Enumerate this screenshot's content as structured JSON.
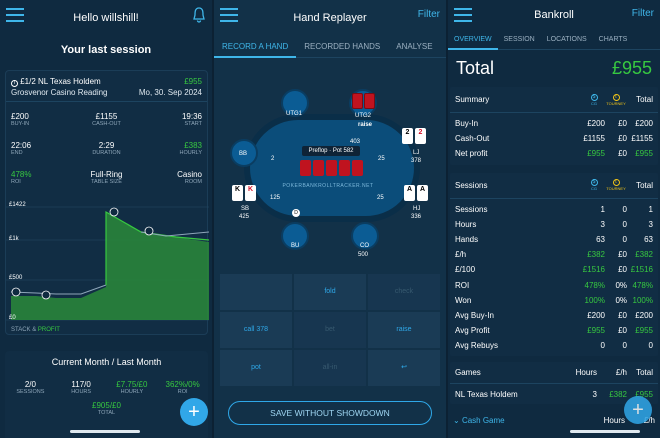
{
  "p1": {
    "title": "Hello willshill!",
    "section_title": "Your last session",
    "game": "£1/2 NL Texas Holdem",
    "profit": "£955",
    "venue": "Grosvenor Casino Reading",
    "date": "Mo, 30. Sep 2024",
    "stats": [
      {
        "v": "£200",
        "l": "BUY-IN"
      },
      {
        "v": "£1155",
        "l": "CASH-OUT"
      },
      {
        "v": "19:36",
        "l": "START"
      },
      {
        "v": "22:06",
        "l": "END"
      },
      {
        "v": "2:29",
        "l": "DURATION"
      },
      {
        "v": "£383",
        "l": "HOURLY"
      },
      {
        "v": "478%",
        "l": "ROI"
      },
      {
        "v": "Full-Ring",
        "l": "TABLE SIZE"
      },
      {
        "v": "Casino",
        "l": "ROOM"
      }
    ],
    "chart_labels": {
      "y1": "£1422",
      "y2": "£1k",
      "y3": "£500",
      "y4": "£0",
      "legend1": "STACK",
      "legend_amp": "&",
      "legend2": "PROFIT"
    },
    "card2_title": "Current Month / Last Month",
    "month_stats": [
      {
        "v": "2/0",
        "l": "SESSIONS"
      },
      {
        "v": "117/0",
        "l": "HOURS"
      },
      {
        "v": "£7.75/£0",
        "l": "HOURLY"
      },
      {
        "v": "362%/0%",
        "l": "ROI"
      }
    ],
    "month_total": "£905/£0",
    "month_total_label": "TOTAL",
    "fab": "+"
  },
  "p2": {
    "title": "Hand Replayer",
    "filter": "Filter",
    "tabs": [
      "RECORD A HAND",
      "RECORDED HANDS",
      "ANALYSE"
    ],
    "seats": {
      "utg1": "UTG1",
      "utg2": "UTG2",
      "bb": "BB",
      "lj": "LJ",
      "lj_stack": "378",
      "sb": "SB",
      "sb_stack": "425",
      "hj": "HJ",
      "hj_stack": "336",
      "bu": "BU",
      "co": "CO",
      "co_stack": "500"
    },
    "raise_label": "raise",
    "raise_amt": "403",
    "pot": "Preflop · Pot 582",
    "chips": {
      "bb": "2",
      "lj": "25",
      "sb": "125",
      "hj": "25"
    },
    "logo": "POKERBANKROLLTRACKER.NET",
    "cards": {
      "lj1": "2",
      "lj2": "2",
      "sb1": "K",
      "sb2": "K",
      "hj1": "A",
      "hj2": "A"
    },
    "actions": [
      "",
      "fold",
      "check",
      "call 378",
      "bet",
      "raise",
      "pot",
      "all-in",
      "↩"
    ],
    "save": "SAVE WITHOUT SHOWDOWN"
  },
  "p3": {
    "title": "Bankroll",
    "filter": "Filter",
    "tabs": [
      "OVERVIEW",
      "SESSION",
      "LOCATIONS",
      "CHARTS"
    ],
    "total_label": "Total",
    "total_value": "£955",
    "summary": {
      "title": "Summary",
      "cg": "CG",
      "tourney": "TOURNEY",
      "col": "Total",
      "rows": [
        [
          "Buy-In",
          "£200",
          "£0",
          "£200"
        ],
        [
          "Cash-Out",
          "£1155",
          "£0",
          "£1155"
        ],
        [
          "Net profit",
          "£955",
          "£0",
          "£955"
        ]
      ]
    },
    "sessions": {
      "title": "Sessions",
      "cg": "CG",
      "tourney": "TOURNEY",
      "col": "Total",
      "rows": [
        [
          "Sessions",
          "1",
          "0",
          "1"
        ],
        [
          "Hours",
          "3",
          "0",
          "3"
        ],
        [
          "Hands",
          "63",
          "0",
          "63"
        ],
        [
          "£/h",
          "£382",
          "£0",
          "£382"
        ],
        [
          "£/100",
          "£1516",
          "£0",
          "£1516"
        ],
        [
          "ROI",
          "478%",
          "0%",
          "478%"
        ],
        [
          "Won",
          "100%",
          "0%",
          "100%"
        ],
        [
          "Avg Buy-In",
          "£200",
          "£0",
          "£200"
        ],
        [
          "Avg Profit",
          "£955",
          "£0",
          "£955"
        ],
        [
          "Avg Rebuys",
          "0",
          "0",
          "0"
        ]
      ]
    },
    "games": {
      "title": "Games",
      "h1": "Hours",
      "h2": "£/h",
      "h3": "Total",
      "row": [
        "NL Texas Holdem",
        "3",
        "£382",
        "£955"
      ]
    },
    "cash_game": "Cash Game",
    "cash_h1": "Hours",
    "cash_h2": "£/h",
    "fab": "+"
  },
  "colors": {
    "accent": "#3fb6e9",
    "profit": "#37c840",
    "tourney": "#f0c419"
  }
}
